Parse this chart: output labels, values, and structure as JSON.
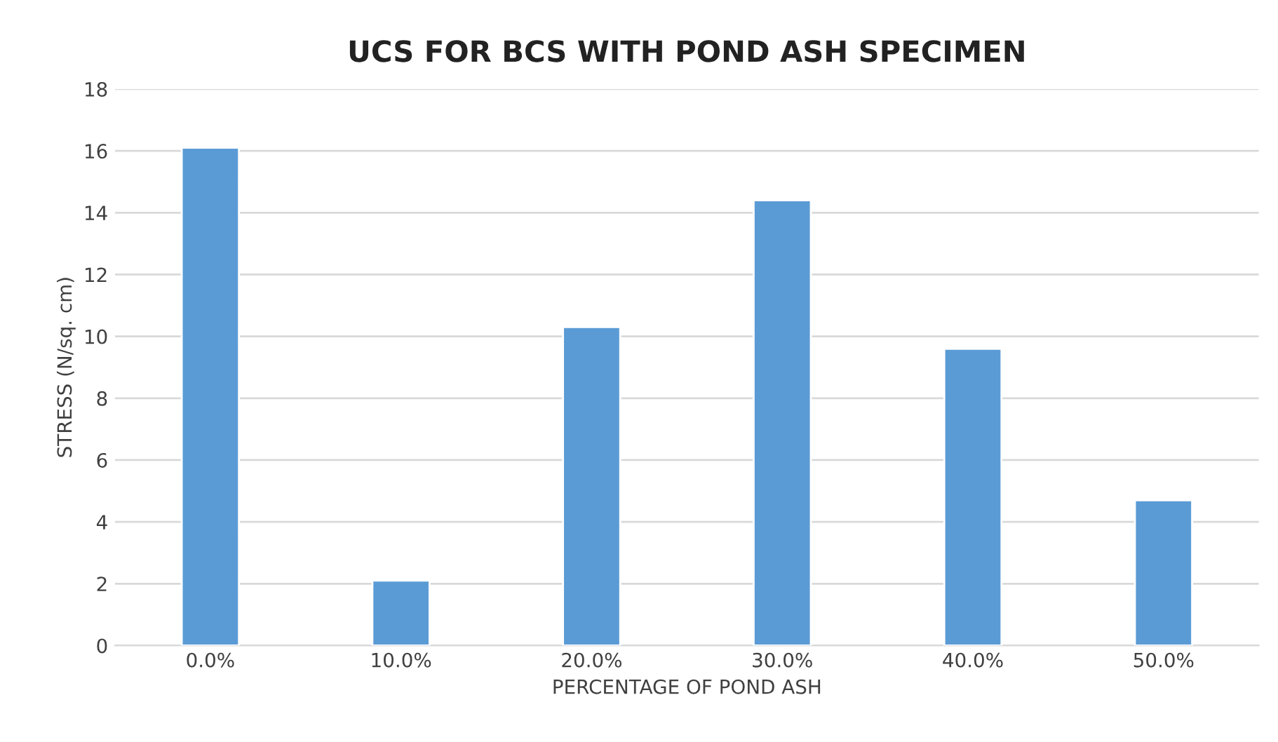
{
  "chart_data": {
    "type": "bar",
    "title": "UCS FOR BCS WITH POND ASH SPECIMEN",
    "xlabel": "PERCENTAGE OF POND ASH",
    "ylabel": "STRESS (N/sq. cm)",
    "categories": [
      "0.0%",
      "10.0%",
      "20.0%",
      "30.0%",
      "40.0%",
      "50.0%"
    ],
    "values": [
      16.1,
      2.1,
      10.3,
      14.4,
      9.6,
      4.7
    ],
    "color": "#5b9bd5",
    "ylim": [
      0,
      18
    ],
    "yticks": [
      0,
      2,
      4,
      6,
      8,
      10,
      12,
      14,
      16,
      18
    ],
    "grid": "y",
    "legend": false
  }
}
